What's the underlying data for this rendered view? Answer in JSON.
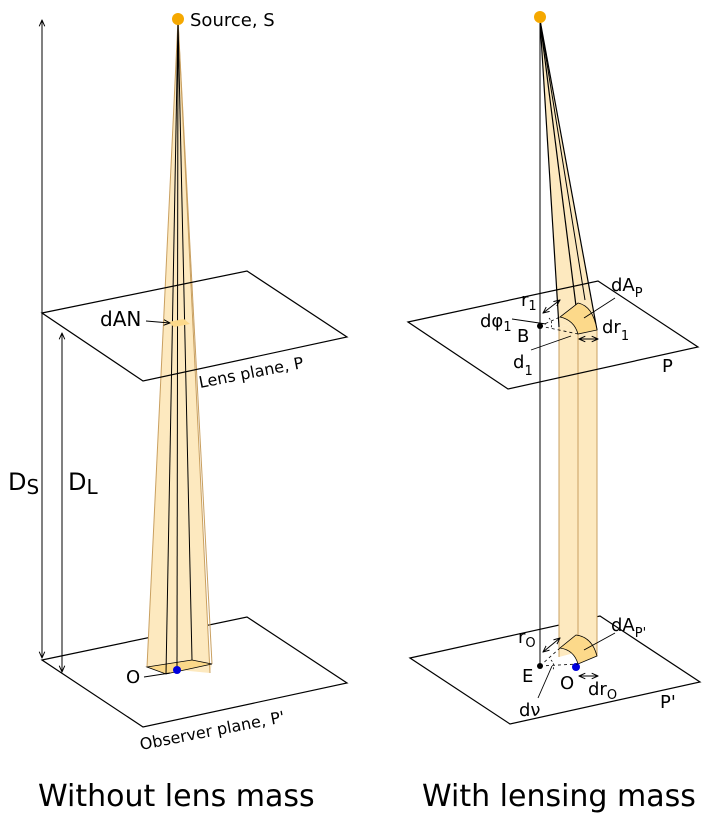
{
  "colors": {
    "source": "#f5a800",
    "observer_dot": "#0000dd",
    "beam_fill": "#fde9bf",
    "beam_edge": "#c9a060",
    "area_fill": "#fcd98a",
    "line": "#000000"
  },
  "left": {
    "caption": "Without lens mass",
    "source_label": "Source, S",
    "dAN": {
      "base": "dA",
      "sub": "N"
    },
    "lens_plane_label": "Lens plane, P",
    "observer_plane_label": "Observer plane, P'",
    "DS": {
      "base": "D",
      "sub": "S"
    },
    "DL": {
      "base": "D",
      "sub": "L"
    },
    "observer_label": "O"
  },
  "right": {
    "caption": "With lensing mass",
    "lens_plane_label": "P",
    "observer_plane_label": "P'",
    "r1": {
      "base": "r",
      "sub": "1"
    },
    "dphi1": {
      "base": "dφ",
      "sub": "1"
    },
    "B": "B",
    "d1": {
      "base": "d",
      "sub": "1"
    },
    "dr1": {
      "base": "dr",
      "sub": "1"
    },
    "dAP": {
      "base": "dA",
      "sub": "P"
    },
    "rO": {
      "base": "r",
      "sub": "O"
    },
    "E": "E",
    "O": "O",
    "dnu": "dν",
    "drO": {
      "base": "dr",
      "sub": "O"
    },
    "dAPprime": {
      "base": "dA",
      "sub": "P'"
    }
  }
}
